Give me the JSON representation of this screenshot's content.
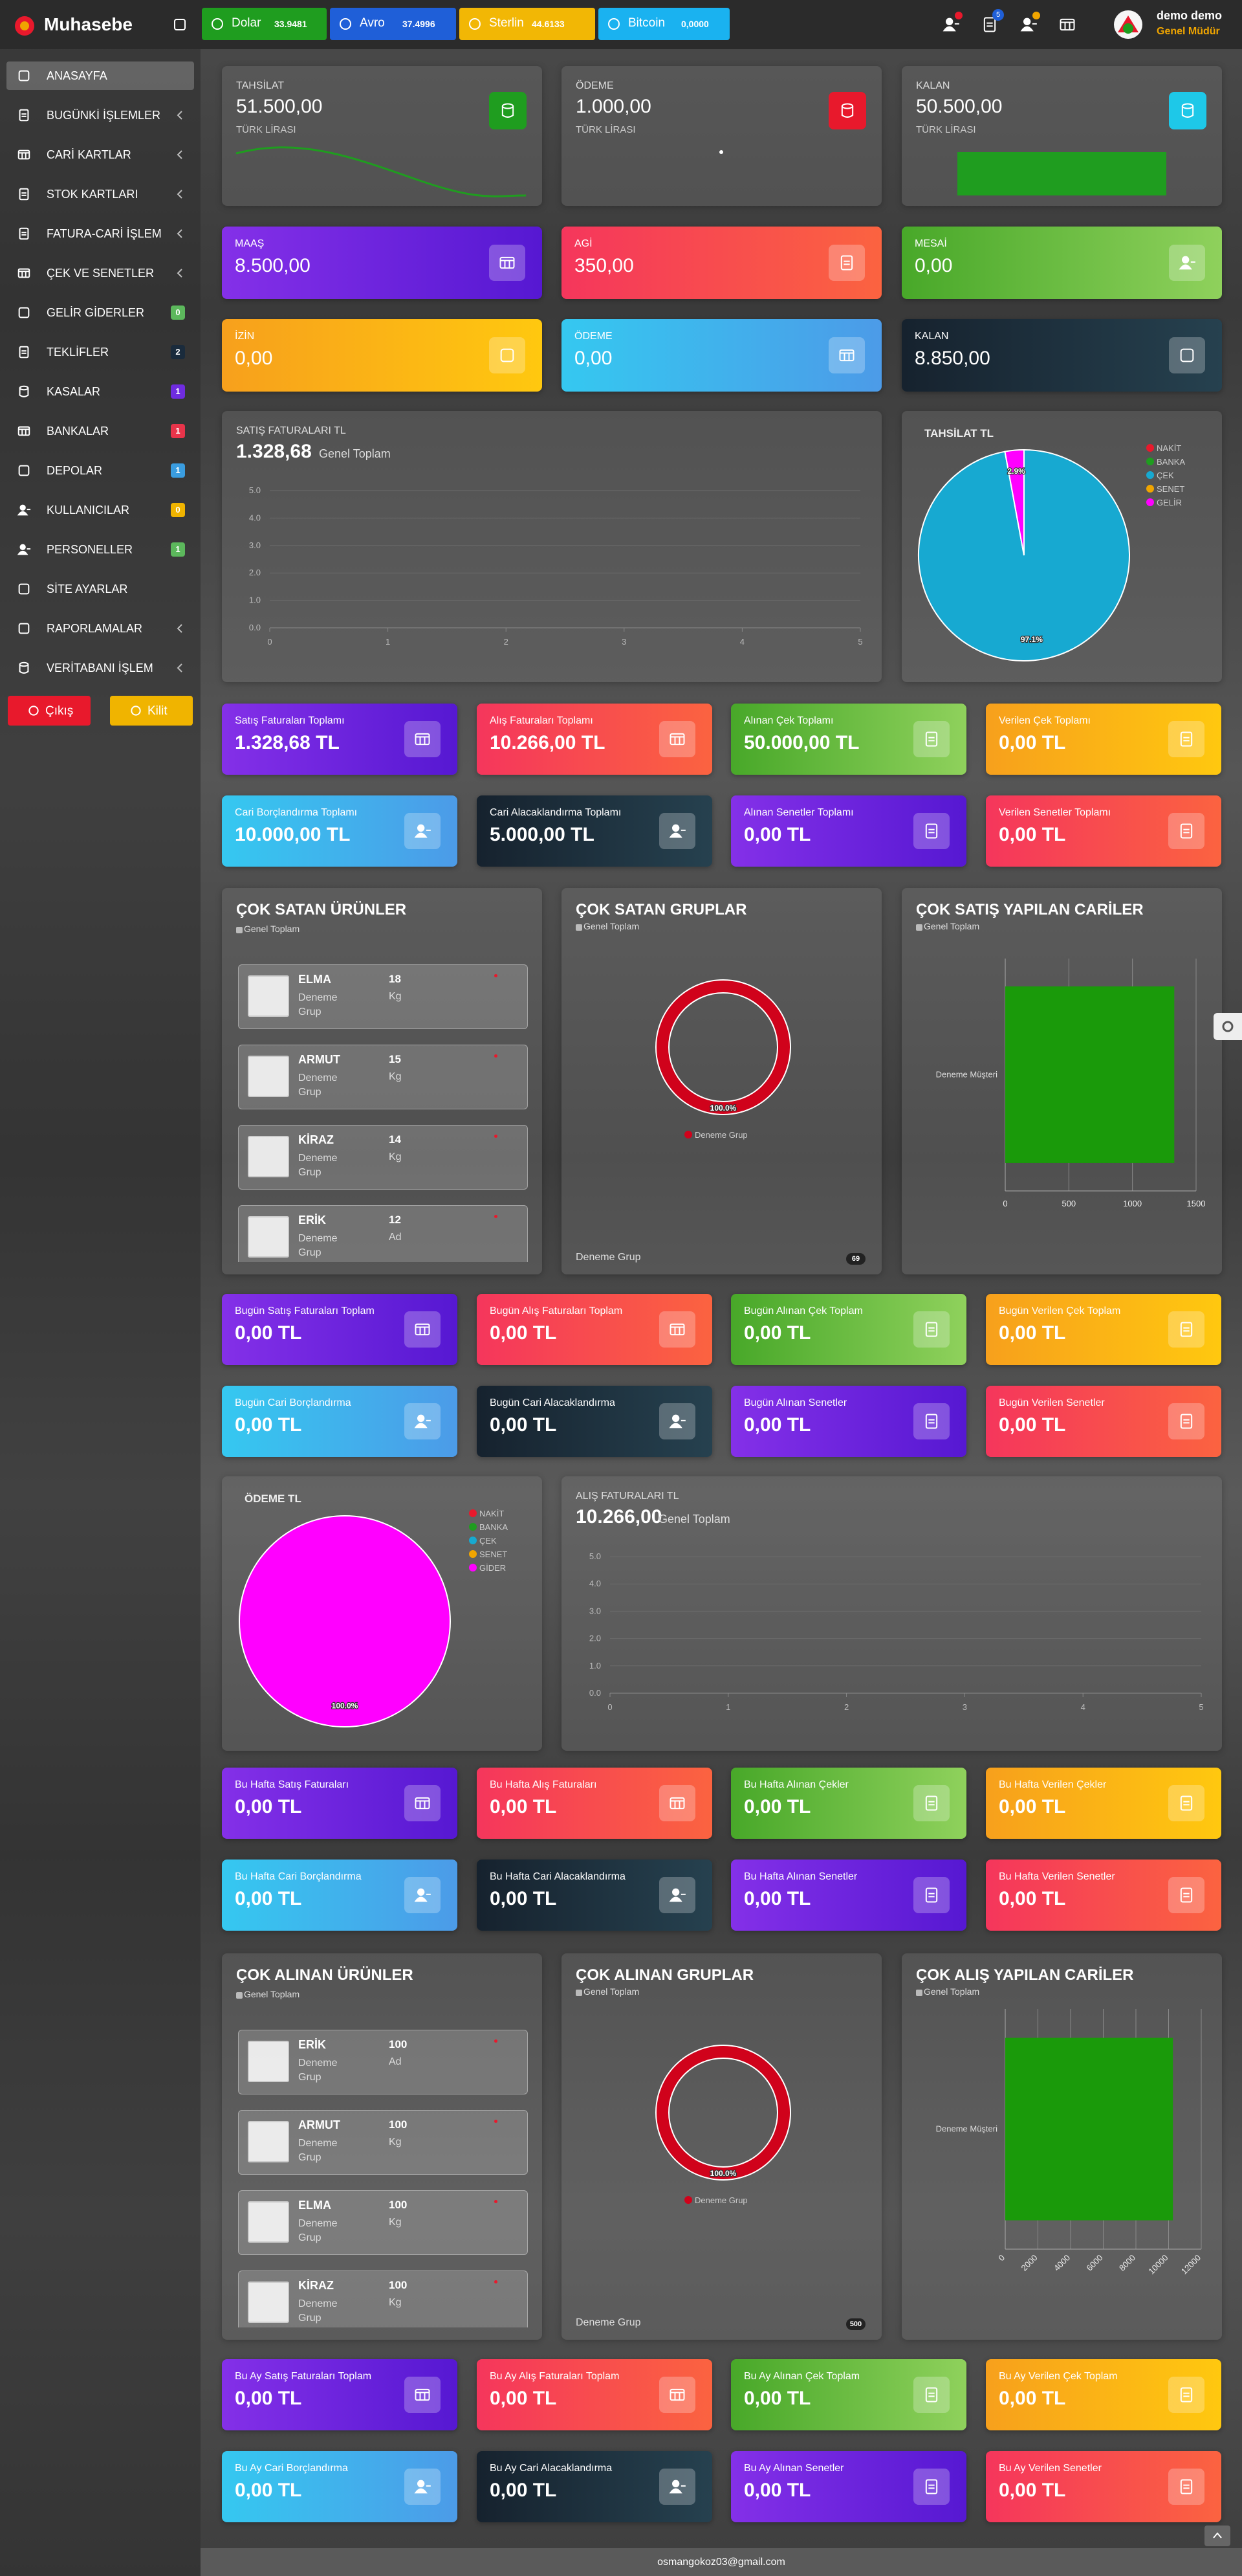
{
  "topbar": {
    "brand": "Muhasebe",
    "currencies": [
      {
        "name": "Dolar",
        "rate": "33.9481",
        "color": "#1f9d1f"
      },
      {
        "name": "Avro",
        "rate": "37.4996",
        "color": "#1f5fd8"
      },
      {
        "name": "Sterlin",
        "rate": "44.6133",
        "color": "#f2b705"
      },
      {
        "name": "Bitcoin",
        "rate": "0,0000",
        "color": "#1ab2f0"
      }
    ],
    "message_count": "5",
    "user": {
      "name": "demo demo",
      "role": "Genel Müdür"
    }
  },
  "sidebar": {
    "menu": [
      {
        "label": "ANASAYFA",
        "active": true
      },
      {
        "label": "BUGÜNKİ İŞLEMLER",
        "submenu": true
      },
      {
        "label": "CARİ KARTLAR",
        "submenu": true
      },
      {
        "label": "STOK KARTLARI",
        "submenu": true
      },
      {
        "label": "FATURA-CARİ İŞLEM",
        "submenu": true
      },
      {
        "label": "ÇEK VE SENETLER",
        "submenu": true
      },
      {
        "label": "GELİR GİDERLER",
        "badge": "0",
        "badge_color": "#5cb85c"
      },
      {
        "label": "TEKLİFLER",
        "badge": "2",
        "badge_color": "#1a2b3c"
      },
      {
        "label": "KASALAR",
        "badge": "1",
        "badge_color": "#6f2ce0"
      },
      {
        "label": "BANKALAR",
        "badge": "1",
        "badge_color": "#e8344a"
      },
      {
        "label": "DEPOLAR",
        "badge": "1",
        "badge_color": "#3a9de0"
      },
      {
        "label": "KULLANICILAR",
        "badge": "0",
        "badge_color": "#f0b400"
      },
      {
        "label": "PERSONELLER",
        "badge": "1",
        "badge_color": "#5cb85c"
      },
      {
        "label": "SİTE AYARLAR"
      },
      {
        "label": "RAPORLAMALAR",
        "submenu": true
      },
      {
        "label": "VERİTABANI İŞLEM",
        "submenu": true
      }
    ],
    "buttons": [
      {
        "label": "Çıkış",
        "color": "#e8192c"
      },
      {
        "label": "Kilit",
        "color": "#f0b400"
      }
    ]
  },
  "balance_cards": [
    {
      "title": "TAHSİLAT",
      "value": "51.500,00",
      "unit": "TÜRK LİRASI",
      "icon_color": "#1f9d1f"
    },
    {
      "title": "ÖDEME",
      "value": "1.000,00",
      "unit": "TÜRK LİRASI",
      "icon_color": "#e8192c"
    },
    {
      "title": "KALAN",
      "value": "50.500,00",
      "unit": "TÜRK LİRASI",
      "icon_color": "#1ec8e8"
    }
  ],
  "payroll_cards": [
    {
      "title": "MAAŞ",
      "value": "8.500,00",
      "color": "purple"
    },
    {
      "title": "AGİ",
      "value": "350,00",
      "color": "red"
    },
    {
      "title": "MESAİ",
      "value": "0,00",
      "color": "green"
    },
    {
      "title": "İZİN",
      "value": "0,00",
      "color": "orange"
    },
    {
      "title": "ÖDEME",
      "value": "0,00",
      "color": "blue"
    },
    {
      "title": "KALAN",
      "value": "8.850,00",
      "color": "dark"
    }
  ],
  "sales_chart": {
    "type": "line",
    "title": "SATIŞ FATURALARI TL",
    "total": "1.328,68",
    "total_label": "Genel Toplam",
    "xlim": [
      0,
      5
    ],
    "ylim": [
      0,
      5
    ],
    "xticks": [
      0,
      1,
      2,
      3,
      4,
      5
    ],
    "yticks": [
      {
        "value": 0,
        "label": "0.0"
      },
      {
        "value": 1,
        "label": "1.0"
      },
      {
        "value": 2,
        "label": "2.0"
      },
      {
        "value": 3,
        "label": "3.0"
      },
      {
        "value": 4,
        "label": "4.0"
      },
      {
        "value": 5,
        "label": "5.0"
      }
    ],
    "grid": true
  },
  "receipts_pie": {
    "type": "pie",
    "title": "TAHSİLAT TL",
    "categories": [
      "NAKİT",
      "BANKA",
      "ÇEK",
      "SENET",
      "GELİR"
    ],
    "values": [
      0,
      0,
      97.1,
      0,
      2.9
    ],
    "value_labels": [
      null,
      null,
      "97.1%",
      null,
      "2.9%"
    ],
    "colors": [
      "#e8192c",
      "#1f9d1f",
      "#17a9d1",
      "#f0a500",
      "#ff00ff"
    ]
  },
  "total_cards": [
    {
      "title": "Satış Faturaları Toplamı",
      "value": "1.328,68 TL",
      "color": "purple"
    },
    {
      "title": "Alış Faturaları Toplamı",
      "value": "10.266,00 TL",
      "color": "red"
    },
    {
      "title": "Alınan Çek Toplamı",
      "value": "50.000,00 TL",
      "color": "green"
    },
    {
      "title": "Verilen Çek Toplamı",
      "value": "0,00 TL",
      "color": "orange"
    },
    {
      "title": "Cari Borçlandırma Toplamı",
      "value": "10.000,00 TL",
      "color": "blue"
    },
    {
      "title": "Cari Alacaklandırma Toplamı",
      "value": "5.000,00 TL",
      "color": "dark"
    },
    {
      "title": "Alınan Senetler Toplamı",
      "value": "0,00 TL",
      "color": "purple"
    },
    {
      "title": "Verilen Senetler Toplamı",
      "value": "0,00 TL",
      "color": "red"
    }
  ],
  "top_sales": {
    "products": {
      "title": "ÇOK SATAN ÜRÜNLER",
      "subtitle": "Genel Toplam",
      "items": [
        {
          "name": "ELMA",
          "quantity": "18",
          "unit": "Kg",
          "group": "Deneme Grup"
        },
        {
          "name": "ARMUT",
          "quantity": "15",
          "unit": "Kg",
          "group": "Deneme Grup"
        },
        {
          "name": "KİRAZ",
          "quantity": "14",
          "unit": "Kg",
          "group": "Deneme Grup"
        },
        {
          "name": "ERİK",
          "quantity": "12",
          "unit": "Ad",
          "group": "Deneme Grup"
        }
      ]
    },
    "groups": {
      "type": "pie",
      "donut": true,
      "title": "ÇOK SATAN GRUPLAR",
      "subtitle": "Genel Toplam",
      "categories": [
        "Deneme Grup"
      ],
      "values": [
        100
      ],
      "value_labels": [
        "100.0%"
      ],
      "colors": [
        "#d0021b"
      ],
      "footer": "Deneme Grup",
      "footer_badge": "69"
    },
    "customers": {
      "type": "bar",
      "title": "ÇOK SATIŞ YAPILAN CARİLER",
      "subtitle": "Genel Toplam",
      "categories": [
        "Deneme Müşteri"
      ],
      "values": [
        1328.68
      ],
      "color": "#1a9a0a",
      "xlim": [
        0,
        1500
      ],
      "xticks": [
        0,
        500,
        1000,
        1500
      ],
      "grid": true
    }
  },
  "today_cards": [
    {
      "title": "Bugün Satış Faturaları Toplam",
      "value": "0,00 TL",
      "color": "purple"
    },
    {
      "title": "Bugün Alış Faturaları Toplam",
      "value": "0,00 TL",
      "color": "red"
    },
    {
      "title": "Bugün Alınan Çek Toplam",
      "value": "0,00 TL",
      "color": "green"
    },
    {
      "title": "Bugün Verilen Çek Toplam",
      "value": "0,00 TL",
      "color": "orange"
    },
    {
      "title": "Bugün Cari Borçlandırma",
      "value": "0,00 TL",
      "color": "blue"
    },
    {
      "title": "Bugün Cari Alacaklandırma",
      "value": "0,00 TL",
      "color": "dark"
    },
    {
      "title": "Bugün Alınan Senetler",
      "value": "0,00 TL",
      "color": "purple"
    },
    {
      "title": "Bugün Verilen Senetler",
      "value": "0,00 TL",
      "color": "red"
    }
  ],
  "payments_pie": {
    "type": "pie",
    "title": "ÖDEME TL",
    "categories": [
      "NAKİT",
      "BANKA",
      "ÇEK",
      "SENET",
      "GİDER"
    ],
    "values": [
      0,
      0,
      0,
      0,
      100
    ],
    "value_labels": [
      null,
      null,
      null,
      null,
      "100.0%"
    ],
    "colors": [
      "#e8192c",
      "#1f9d1f",
      "#17a9d1",
      "#f0a500",
      "#ff00ff"
    ]
  },
  "purchase_chart": {
    "type": "line",
    "title": "ALIŞ FATURALARI TL",
    "total": "10.266,00",
    "total_label": "Genel Toplam",
    "xlim": [
      0,
      5
    ],
    "ylim": [
      0,
      5
    ],
    "xticks": [
      0,
      1,
      2,
      3,
      4,
      5
    ],
    "yticks": [
      {
        "value": 0,
        "label": "0.0"
      },
      {
        "value": 1,
        "label": "1.0"
      },
      {
        "value": 2,
        "label": "2.0"
      },
      {
        "value": 3,
        "label": "3.0"
      },
      {
        "value": 4,
        "label": "4.0"
      },
      {
        "value": 5,
        "label": "5.0"
      }
    ],
    "grid": true
  },
  "week_cards": [
    {
      "title": "Bu Hafta Satış Faturaları",
      "value": "0,00 TL",
      "color": "purple"
    },
    {
      "title": "Bu Hafta Alış Faturaları",
      "value": "0,00 TL",
      "color": "red"
    },
    {
      "title": "Bu Hafta Alınan Çekler",
      "value": "0,00 TL",
      "color": "green"
    },
    {
      "title": "Bu Hafta Verilen Çekler",
      "value": "0,00 TL",
      "color": "orange"
    },
    {
      "title": "Bu Hafta Cari Borçlandırma",
      "value": "0,00 TL",
      "color": "blue"
    },
    {
      "title": "Bu Hafta Cari Alacaklandırma",
      "value": "0,00 TL",
      "color": "dark"
    },
    {
      "title": "Bu Hafta Alınan Senetler",
      "value": "0,00 TL",
      "color": "purple"
    },
    {
      "title": "Bu Hafta Verilen Senetler",
      "value": "0,00 TL",
      "color": "red"
    }
  ],
  "top_purchases": {
    "products": {
      "title": "ÇOK ALINAN ÜRÜNLER",
      "subtitle": "Genel Toplam",
      "items": [
        {
          "name": "ERİK",
          "quantity": "100",
          "unit": "Ad",
          "group": "Deneme Grup"
        },
        {
          "name": "ARMUT",
          "quantity": "100",
          "unit": "Kg",
          "group": "Deneme Grup"
        },
        {
          "name": "ELMA",
          "quantity": "100",
          "unit": "Kg",
          "group": "Deneme Grup"
        },
        {
          "name": "KİRAZ",
          "quantity": "100",
          "unit": "Kg",
          "group": "Deneme Grup"
        }
      ]
    },
    "groups": {
      "type": "pie",
      "donut": true,
      "title": "ÇOK ALINAN GRUPLAR",
      "subtitle": "Genel Toplam",
      "categories": [
        "Deneme Grup"
      ],
      "values": [
        100
      ],
      "value_labels": [
        "100.0%"
      ],
      "colors": [
        "#d0021b"
      ],
      "footer": "Deneme Grup",
      "footer_badge": "500"
    },
    "customers": {
      "type": "bar",
      "title": "ÇOK ALIŞ YAPILAN CARİLER",
      "subtitle": "Genel Toplam",
      "categories": [
        "Deneme Müşteri"
      ],
      "values": [
        10266
      ],
      "color": "#1a9a0a",
      "xlim": [
        0,
        12000
      ],
      "xticks": [
        0,
        2000,
        4000,
        6000,
        8000,
        10000,
        12000
      ],
      "grid": true,
      "xtick_rotation": -45
    }
  },
  "month_cards": [
    {
      "title": "Bu Ay Satış Faturaları Toplam",
      "value": "0,00 TL",
      "color": "purple"
    },
    {
      "title": "Bu Ay Alış Faturaları Toplam",
      "value": "0,00 TL",
      "color": "red"
    },
    {
      "title": "Bu Ay Alınan Çek Toplam",
      "value": "0,00 TL",
      "color": "green"
    },
    {
      "title": "Bu Ay Verilen Çek Toplam",
      "value": "0,00 TL",
      "color": "orange"
    },
    {
      "title": "Bu Ay Cari Borçlandırma",
      "value": "0,00 TL",
      "color": "blue"
    },
    {
      "title": "Bu Ay Cari Alacaklandırma",
      "value": "0,00 TL",
      "color": "dark"
    },
    {
      "title": "Bu Ay Alınan Senetler",
      "value": "0,00 TL",
      "color": "purple"
    },
    {
      "title": "Bu Ay Verilen Senetler",
      "value": "0,00 TL",
      "color": "red"
    }
  ],
  "footer": {
    "email": "osmangokoz03@gmail.com"
  }
}
